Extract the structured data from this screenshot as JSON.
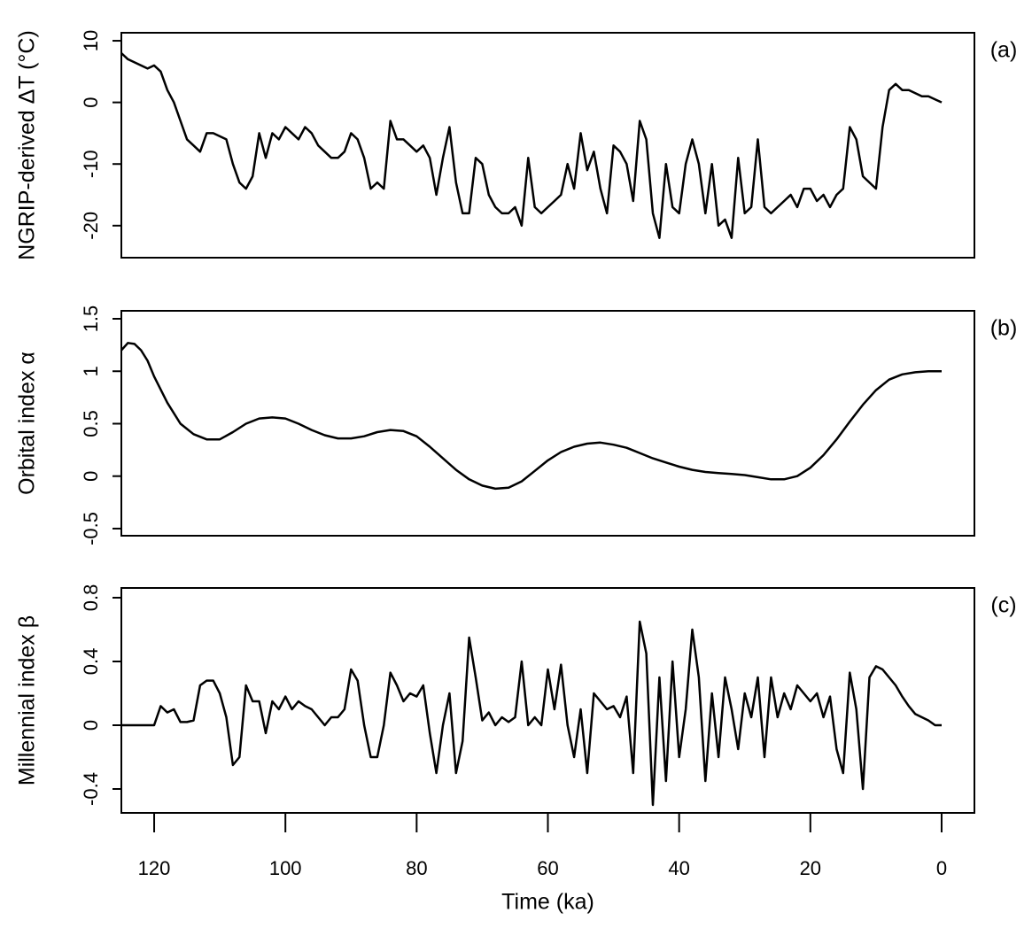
{
  "chart_data": [
    {
      "type": "line",
      "ylabel": "NGRIP-derived ΔT (°C)",
      "panel_label": "(a)",
      "color": "#000000",
      "xlim": [
        125,
        -5
      ],
      "ylim": [
        -25.2,
        11.3
      ],
      "yticks": [
        10,
        0,
        -10,
        -20
      ],
      "x": [
        125,
        124,
        123,
        122,
        121,
        120,
        119,
        118,
        117,
        116,
        115,
        114,
        113,
        112,
        111,
        110,
        109,
        108,
        107,
        106,
        105,
        104,
        103,
        102,
        101,
        100,
        99,
        98,
        97,
        96,
        95,
        94,
        93,
        92,
        91,
        90,
        89,
        88,
        87,
        86,
        85,
        84,
        83,
        82,
        81,
        80,
        79,
        78,
        77,
        76,
        75,
        74,
        73,
        72,
        71,
        70,
        69,
        68,
        67,
        66,
        65,
        64,
        63,
        62,
        61,
        60,
        59,
        58,
        57,
        56,
        55,
        54,
        53,
        52,
        51,
        50,
        49,
        48,
        47,
        46,
        45,
        44,
        43,
        42,
        41,
        40,
        39,
        38,
        37,
        36,
        35,
        34,
        33,
        32,
        31,
        30,
        29,
        28,
        27,
        26,
        25,
        24,
        23,
        22,
        21,
        20,
        19,
        18,
        17,
        16,
        15,
        14,
        13,
        12,
        11,
        10,
        9,
        8,
        7,
        6,
        5,
        4,
        3,
        2,
        1,
        0
      ],
      "values": [
        8,
        7,
        6.5,
        6,
        5.5,
        6,
        5,
        2,
        0,
        -3,
        -6,
        -7,
        -8,
        -5,
        -5,
        -5.5,
        -6,
        -10,
        -13,
        -14,
        -12,
        -5,
        -9,
        -5,
        -6,
        -4,
        -5,
        -6,
        -4,
        -5,
        -7,
        -8,
        -9,
        -9,
        -8,
        -5,
        -6,
        -9,
        -14,
        -13,
        -14,
        -3,
        -6,
        -6,
        -7,
        -8,
        -7,
        -9,
        -15,
        -9,
        -4,
        -13,
        -18,
        -18,
        -9,
        -10,
        -15,
        -17,
        -18,
        -18,
        -17,
        -20,
        -9,
        -17,
        -18,
        -17,
        -16,
        -15,
        -10,
        -14,
        -5,
        -11,
        -8,
        -14,
        -18,
        -7,
        -8,
        -10,
        -16,
        -3,
        -6,
        -18,
        -22,
        -10,
        -17,
        -18,
        -10,
        -6,
        -10,
        -18,
        -10,
        -20,
        -19,
        -22,
        -9,
        -18,
        -17,
        -6,
        -17,
        -18,
        -17,
        -16,
        -15,
        -17,
        -14,
        -14,
        -16,
        -15,
        -17,
        -15,
        -14,
        -4,
        -6,
        -12,
        -13,
        -14,
        -4,
        2,
        3,
        2,
        2,
        1.5,
        1,
        1,
        0.5,
        0
      ]
    },
    {
      "type": "line",
      "ylabel": "Orbital index α",
      "panel_label": "(b)",
      "color": "#000000",
      "xlim": [
        125,
        -5
      ],
      "ylim": [
        -0.568,
        1.576
      ],
      "yticks": [
        -0.5,
        0,
        0.5,
        1,
        1.5
      ],
      "x": [
        125,
        124,
        123,
        122,
        121,
        120,
        118,
        116,
        114,
        112,
        110,
        108,
        106,
        104,
        102,
        100,
        98,
        96,
        94,
        92,
        90,
        88,
        86,
        84,
        82,
        80,
        78,
        76,
        74,
        72,
        70,
        68,
        66,
        64,
        62,
        60,
        58,
        56,
        54,
        52,
        50,
        48,
        46,
        44,
        42,
        40,
        38,
        36,
        34,
        32,
        30,
        28,
        26,
        24,
        22,
        20,
        18,
        16,
        14,
        12,
        10,
        8,
        6,
        4,
        2,
        0
      ],
      "values": [
        1.2,
        1.27,
        1.26,
        1.2,
        1.1,
        0.95,
        0.7,
        0.5,
        0.4,
        0.35,
        0.35,
        0.42,
        0.5,
        0.55,
        0.56,
        0.55,
        0.5,
        0.44,
        0.39,
        0.36,
        0.36,
        0.38,
        0.42,
        0.44,
        0.43,
        0.38,
        0.28,
        0.17,
        0.06,
        -0.03,
        -0.09,
        -0.12,
        -0.11,
        -0.05,
        0.05,
        0.15,
        0.23,
        0.28,
        0.31,
        0.32,
        0.3,
        0.27,
        0.22,
        0.17,
        0.13,
        0.09,
        0.06,
        0.04,
        0.03,
        0.02,
        0.01,
        -0.01,
        -0.03,
        -0.03,
        0,
        0.08,
        0.2,
        0.35,
        0.52,
        0.68,
        0.82,
        0.92,
        0.97,
        0.99,
        1,
        1
      ]
    },
    {
      "type": "line",
      "ylabel": "Millennial index β",
      "panel_label": "(c)",
      "xlabel": "Time (ka)",
      "color": "#000000",
      "xlim": [
        125,
        -5
      ],
      "xticks": [
        120,
        100,
        80,
        60,
        40,
        20,
        0
      ],
      "ylim": [
        -0.55,
        0.861
      ],
      "yticks": [
        -0.4,
        0,
        0.4,
        0.8
      ],
      "x": [
        125,
        120,
        119,
        118,
        117,
        116,
        115,
        114,
        113,
        112,
        111,
        110,
        109,
        108,
        107,
        106,
        105,
        104,
        103,
        102,
        101,
        100,
        99,
        98,
        97,
        96,
        95,
        94,
        93,
        92,
        91,
        90,
        89,
        88,
        87,
        86,
        85,
        84,
        83,
        82,
        81,
        80,
        79,
        78,
        77,
        76,
        75,
        74,
        73,
        72,
        71,
        70,
        69,
        68,
        67,
        66,
        65,
        64,
        63,
        62,
        61,
        60,
        59,
        58,
        57,
        56,
        55,
        54,
        53,
        52,
        51,
        50,
        49,
        48,
        47,
        46,
        45,
        44,
        43,
        42,
        41,
        40,
        39,
        38,
        37,
        36,
        35,
        34,
        33,
        32,
        31,
        30,
        29,
        28,
        27,
        26,
        25,
        24,
        23,
        22,
        21,
        20,
        19,
        18,
        17,
        16,
        15,
        14,
        13,
        12,
        11,
        10,
        9,
        8,
        7,
        6,
        5,
        4,
        3,
        2,
        1,
        0
      ],
      "values": [
        0,
        0,
        0.12,
        0.08,
        0.1,
        0.02,
        0.02,
        0.03,
        0.25,
        0.28,
        0.28,
        0.2,
        0.05,
        -0.25,
        -0.2,
        0.25,
        0.15,
        0.15,
        -0.05,
        0.15,
        0.1,
        0.18,
        0.1,
        0.15,
        0.12,
        0.1,
        0.05,
        0,
        0.05,
        0.05,
        0.1,
        0.35,
        0.28,
        0,
        -0.2,
        -0.2,
        0,
        0.33,
        0.25,
        0.15,
        0.2,
        0.18,
        0.25,
        -0.05,
        -0.3,
        0,
        0.2,
        -0.3,
        -0.1,
        0.55,
        0.3,
        0.03,
        0.08,
        0,
        0.05,
        0.02,
        0.05,
        0.4,
        0,
        0.05,
        0,
        0.35,
        0.1,
        0.38,
        0,
        -0.2,
        0.1,
        -0.3,
        0.2,
        0.15,
        0.1,
        0.12,
        0.05,
        0.18,
        -0.3,
        0.65,
        0.45,
        -0.5,
        0.3,
        -0.35,
        0.4,
        -0.2,
        0.1,
        0.6,
        0.3,
        -0.35,
        0.2,
        -0.2,
        0.3,
        0.1,
        -0.15,
        0.2,
        0.05,
        0.3,
        -0.2,
        0.3,
        0.05,
        0.2,
        0.1,
        0.25,
        0.2,
        0.15,
        0.2,
        0.05,
        0.18,
        -0.15,
        -0.3,
        0.33,
        0.1,
        -0.4,
        0.3,
        0.37,
        0.35,
        0.3,
        0.25,
        0.18,
        0.12,
        0.07,
        0.05,
        0.03,
        0,
        0
      ]
    }
  ]
}
